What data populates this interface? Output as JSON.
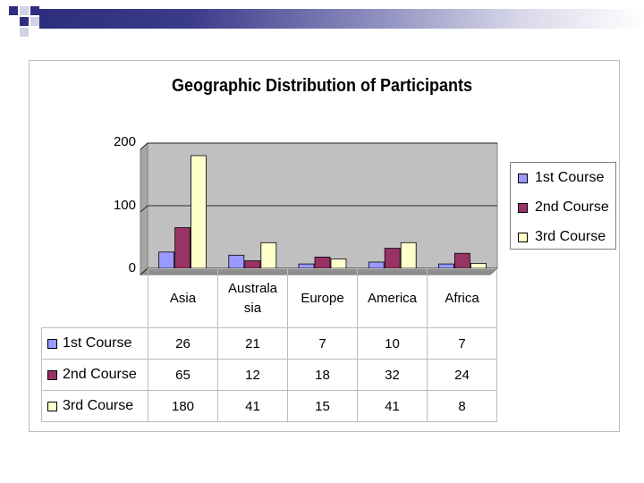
{
  "chart_data": {
    "type": "bar",
    "title": "Geographic Distribution of Participants",
    "categories": [
      "Asia",
      "Australa sia",
      "Europe",
      "America",
      "Africa"
    ],
    "category_lines": [
      [
        "Asia"
      ],
      [
        "Australa",
        "sia"
      ],
      [
        "Europe"
      ],
      [
        "America"
      ],
      [
        "Africa"
      ]
    ],
    "series": [
      {
        "name": "1st Course",
        "values": [
          26,
          21,
          7,
          10,
          7
        ],
        "color": "#9999ff"
      },
      {
        "name": "2nd Course",
        "values": [
          65,
          12,
          18,
          32,
          24
        ],
        "color": "#993366"
      },
      {
        "name": "3rd Course",
        "values": [
          180,
          41,
          15,
          41,
          8
        ],
        "color": "#ffffcc"
      }
    ],
    "ylim": [
      0,
      200
    ],
    "yticks": [
      "200",
      "100",
      "0"
    ],
    "grid": true,
    "plot_background": "#c0c0c0",
    "legend_position": "right",
    "data_table": true
  }
}
